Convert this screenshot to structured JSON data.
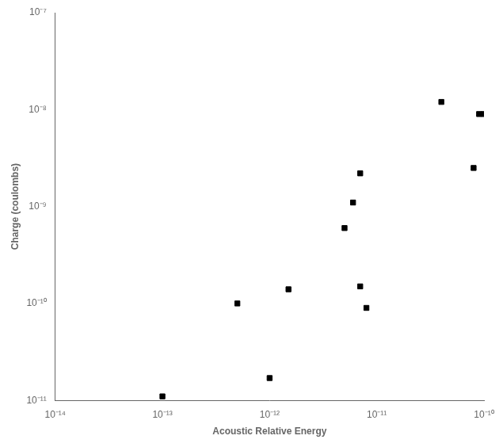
{
  "chart_data": {
    "type": "scatter",
    "x": [
      1e-13,
      5e-13,
      1e-12,
      1.5e-12,
      5e-12,
      6e-12,
      7e-12,
      7e-12,
      8e-12,
      4e-11,
      8e-11,
      9e-11,
      1e-10
    ],
    "values": [
      1.1e-11,
      1e-10,
      1.7e-11,
      1.4e-10,
      6e-10,
      1.1e-09,
      2.2e-09,
      1.5e-10,
      9e-11,
      1.2e-08,
      2.5e-09,
      9e-09,
      9e-09
    ],
    "xlabel": "Acoustic Relative Energy",
    "ylabel": "Charge (coulombs)",
    "log": true,
    "xlim": [
      1e-14,
      1e-10
    ],
    "ylim": [
      1e-11,
      1e-07
    ],
    "xticks": [
      {
        "value": 1e-14,
        "label": "10⁻¹⁴"
      },
      {
        "value": 1e-13,
        "label": "10⁻¹³"
      },
      {
        "value": 1e-12,
        "label": "10⁻¹²"
      },
      {
        "value": 1e-11,
        "label": "10⁻¹¹"
      },
      {
        "value": 1e-10,
        "label": "10⁻¹⁰"
      }
    ],
    "yticks": [
      {
        "value": 1e-11,
        "label": "10⁻¹¹"
      },
      {
        "value": 1e-10,
        "label": "10⁻¹⁰"
      },
      {
        "value": 1e-09,
        "label": "10⁻⁹"
      },
      {
        "value": 1e-08,
        "label": "10⁻⁸"
      },
      {
        "value": 1e-07,
        "label": "10⁻⁷"
      }
    ],
    "color": "black",
    "marker": "square",
    "grid": false
  }
}
